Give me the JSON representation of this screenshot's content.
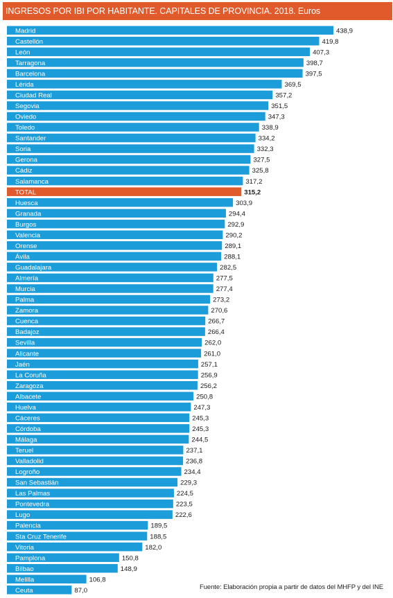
{
  "chart_data": {
    "type": "bar",
    "orientation": "horizontal",
    "title": "INGRESOS POR IBI POR HABITANTE. CAPITALES DE PROVINCIA. 2018. Euros",
    "source": "Fuente: Elaboración propia a partir de datos del MHFP y del INE",
    "colors": {
      "bar": "#1c9cd9",
      "highlight": "#e05a2b",
      "title_bg": "#e05a2b"
    },
    "highlight_category": "TOTAL",
    "categories": [
      "Madrid",
      "Castellón",
      "León",
      "Tarragona",
      "Barcelona",
      "Lérida",
      "Ciudad Real",
      "Segovia",
      "Oviedo",
      "Toledo",
      "Santander",
      "Soria",
      "Gerona",
      "Cádiz",
      "Salamanca",
      "TOTAL",
      "Huesca",
      "Granada",
      "Burgos",
      "Valencia",
      "Orense",
      "Ávila",
      "Guadalajara",
      "Almería",
      "Murcia",
      "Palma",
      "Zamora",
      "Cuenca",
      "Badajoz",
      "Sevilla",
      "Alicante",
      "Jaén",
      "La Coruña",
      "Zaragoza",
      "Albacete",
      "Huelva",
      "Cáceres",
      "Córdoba",
      "Málaga",
      "Teruel",
      "Valladolid",
      "Logroño",
      "San Sebastián",
      "Las Palmas",
      "Pontevedra",
      "Lugo",
      "Palencia",
      "Sta Cruz Tenerife",
      "Vitoria",
      "Pamplona",
      "Bilbao",
      "Melilla",
      "Ceuta"
    ],
    "values": [
      438.9,
      419.8,
      407.3,
      398.7,
      397.5,
      369.5,
      357.2,
      351.5,
      347.3,
      338.9,
      334.2,
      332.3,
      327.5,
      325.8,
      317.2,
      315.2,
      303.9,
      294.4,
      292.9,
      290.2,
      289.1,
      288.1,
      282.5,
      277.5,
      277.4,
      273.2,
      270.6,
      266.7,
      266.4,
      262.0,
      261.0,
      257.1,
      256.9,
      256.2,
      250.8,
      247.3,
      245.3,
      245.3,
      244.5,
      237.1,
      236.8,
      234.4,
      229.3,
      224.5,
      223.5,
      222.6,
      189.5,
      188.5,
      182.0,
      150.8,
      148.9,
      106.8,
      87.0
    ],
    "value_labels": [
      "438,9",
      "419,8",
      "407,3",
      "398,7",
      "397,5",
      "369,5",
      "357,2",
      "351,5",
      "347,3",
      "338,9",
      "334,2",
      "332,3",
      "327,5",
      "325,8",
      "317,2",
      "315,2",
      "303,9",
      "294,4",
      "292,9",
      "290,2",
      "289,1",
      "288,1",
      "282,5",
      "277,5",
      "277,4",
      "273,2",
      "270,6",
      "266,7",
      "266,4",
      "262,0",
      "261,0",
      "257,1",
      "256,9",
      "256,2",
      "250,8",
      "247,3",
      "245,3",
      "245,3",
      "244,5",
      "237,1",
      "236,8",
      "234,4",
      "229,3",
      "224,5",
      "223,5",
      "222,6",
      "189,5",
      "188,5",
      "182,0",
      "150,8",
      "148,9",
      "106,8",
      "87,0"
    ],
    "xlim": [
      0,
      438.9
    ],
    "grid": false,
    "legend": "none"
  }
}
